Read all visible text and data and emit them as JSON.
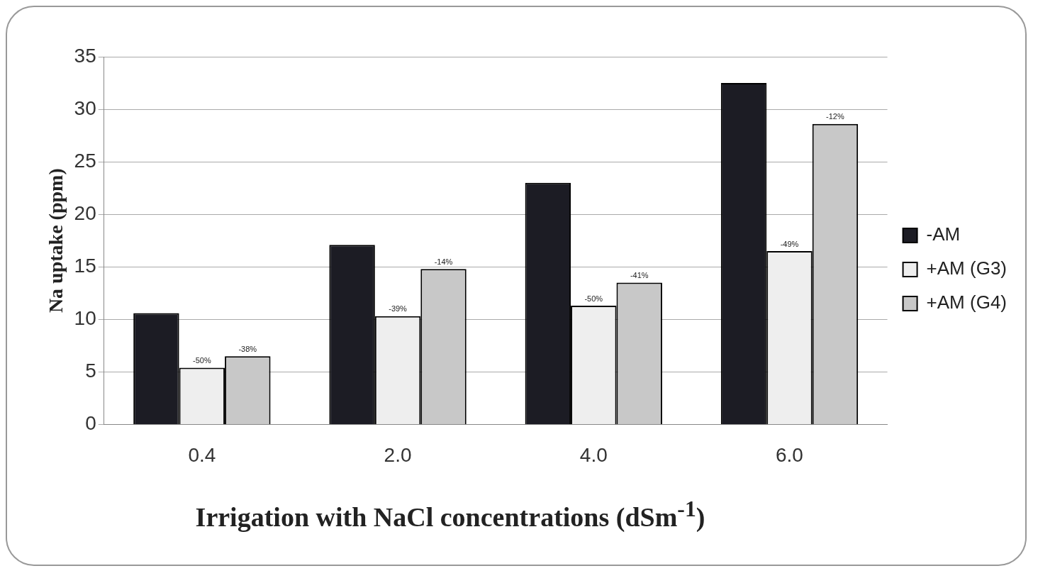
{
  "chart_data": {
    "type": "bar",
    "xlabel": "Irrigation with NaCl concentrations (dSm$^{-1}$)",
    "ylabel": "Na uptake (ppm)",
    "categories": [
      "0.4",
      "2.0",
      "4.0",
      "6.0"
    ],
    "series": [
      {
        "name": "-AM",
        "color": "#1c1c24",
        "values": [
          10.6,
          17.1,
          23.0,
          32.5
        ]
      },
      {
        "name": "+AM (G3)",
        "color": "#eeeeee",
        "values": [
          5.4,
          10.3,
          11.3,
          16.5
        ]
      },
      {
        "name": "+AM (G4)",
        "color": "#c8c8c8",
        "values": [
          6.5,
          14.8,
          13.5,
          28.6
        ]
      }
    ],
    "annotations": [
      "-50%",
      "-38%",
      "-39%",
      "-14%",
      "-50%",
      "-41%",
      "-49%",
      "-12%"
    ],
    "ylim": [
      0,
      35
    ],
    "yticks": [
      0,
      5,
      10,
      15,
      20,
      25,
      30,
      35
    ],
    "grid": "y",
    "legend": "right"
  }
}
